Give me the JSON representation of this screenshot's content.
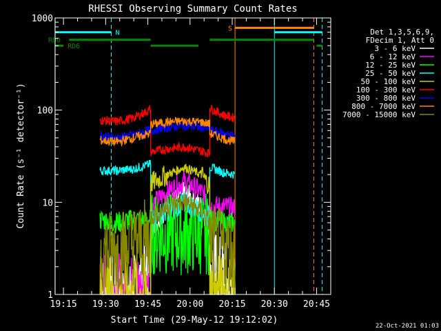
{
  "colors": {
    "background": "#000000",
    "axes": "#ffffff",
    "attenuator_state": "#00ffff",
    "saa_state": "#ff8800",
    "decimation_state": "#008800"
  },
  "footer": {
    "date_stamp": "22-Oct-2021 01:03"
  },
  "chart_data": {
    "type": "line",
    "title": "RHESSI Observing Summary Count Rates",
    "xlabel": "Start Time (29-May-12 19:12:02)",
    "ylabel": "Count Rate (s⁻¹ detector⁻¹)",
    "y_scale": "log",
    "ylim": [
      1,
      1000
    ],
    "xlim": [
      "19:12:02",
      "20:50:02"
    ],
    "y_ticks": [
      {
        "value": 1,
        "label": "1"
      },
      {
        "value": 10,
        "label": "10"
      },
      {
        "value": 100,
        "label": "100"
      },
      {
        "value": 1000,
        "label": "1000"
      }
    ],
    "x_ticks": [
      {
        "value": "19:15",
        "label": "19:15"
      },
      {
        "value": "19:30",
        "label": "19:30"
      },
      {
        "value": "19:45",
        "label": "19:45"
      },
      {
        "value": "20:00",
        "label": "20:00"
      },
      {
        "value": "20:15",
        "label": "20:15"
      },
      {
        "value": "20:30",
        "label": "20:30"
      },
      {
        "value": "20:45",
        "label": "20:45"
      }
    ],
    "legend": {
      "placement": "right",
      "header": [
        "Det 1,3,5,6,9,",
        "FDecim 1, Att 0"
      ]
    },
    "x": [
      "19:28",
      "19:34",
      "19:40",
      "19:46",
      "19:46",
      "19:52",
      "19:58",
      "20:04",
      "20:07",
      "20:07",
      "20:12",
      "20:16"
    ],
    "series": [
      {
        "name": "3 - 6 keV",
        "color": "#ffffff",
        "values": [
          1,
          1,
          1,
          2,
          5,
          9,
          13,
          9,
          5,
          2,
          1.5,
          1
        ]
      },
      {
        "name": "6 - 12 keV",
        "color": "#ff00ff",
        "values": [
          1,
          1,
          1,
          1,
          9,
          13,
          17,
          13,
          10,
          9,
          9,
          8.5
        ]
      },
      {
        "name": "12 - 25 keV",
        "color": "#00ff00",
        "values": [
          6.5,
          6,
          6.5,
          6.5,
          4.5,
          4.5,
          4.5,
          4.5,
          4.5,
          6.5,
          6,
          6
        ]
      },
      {
        "name": "25 - 50 keV",
        "color": "#00ffff",
        "values": [
          22,
          22,
          23,
          26,
          7,
          8,
          10,
          8,
          7,
          24,
          21,
          20
        ]
      },
      {
        "name": "50 - 100 keV",
        "color": "#cccc00",
        "values": [
          1,
          1,
          1,
          1,
          16,
          20,
          24,
          20,
          15,
          1,
          1,
          1
        ]
      },
      {
        "name": "100 - 300 keV",
        "color": "#ff0000",
        "values": [
          78,
          75,
          82,
          102,
          35,
          38,
          40,
          36,
          34,
          105,
          88,
          82
        ]
      },
      {
        "name": "300 - 800 keV",
        "color": "#0000ff",
        "values": [
          53,
          50,
          54,
          61,
          60,
          65,
          68,
          65,
          62,
          61,
          56,
          52
        ]
      },
      {
        "name": "800 - 7000 keV",
        "color": "#ff8800",
        "values": [
          47,
          45,
          50,
          56,
          70,
          74,
          76,
          74,
          71,
          56,
          49,
          45
        ]
      },
      {
        "name": "7000 - 15000 keV",
        "color": "#888800",
        "values": [
          3,
          3,
          3.5,
          4,
          7,
          9,
          10,
          8,
          6,
          3.5,
          3,
          3
        ]
      }
    ],
    "state_bars": [
      {
        "label": "N",
        "color": "#00ffff",
        "level": 700,
        "segments": [
          [
            "19:12",
            "19:32"
          ],
          [
            "20:30",
            "20:47"
          ]
        ]
      },
      {
        "label": "S",
        "color": "#ff8800",
        "level": 780,
        "segments": [
          [
            "20:16",
            "20:44"
          ]
        ]
      },
      {
        "label": "RD0",
        "color": "#008800",
        "level": 580,
        "segments": [
          [
            "19:17",
            "19:46"
          ],
          [
            "20:07",
            "20:44"
          ]
        ]
      },
      {
        "label": "RD6",
        "color": "#008800",
        "level": 500,
        "segments": [
          [
            "19:12",
            "19:15"
          ],
          [
            "19:46",
            "20:03"
          ],
          [
            "20:45",
            "20:47"
          ]
        ]
      }
    ],
    "event_lines": [
      {
        "time": "19:12",
        "color": "#00ffff",
        "style": "solid"
      },
      {
        "time": "19:32",
        "color": "#00ffff",
        "style": "dashed"
      },
      {
        "time": "20:16",
        "color": "#ff8800",
        "style": "solid"
      },
      {
        "time": "20:30",
        "color": "#00ffff",
        "style": "solid"
      },
      {
        "time": "20:44",
        "color": "#ff8800",
        "style": "dashed"
      },
      {
        "time": "20:47",
        "color": "#00ffff",
        "style": "dashed"
      }
    ]
  }
}
